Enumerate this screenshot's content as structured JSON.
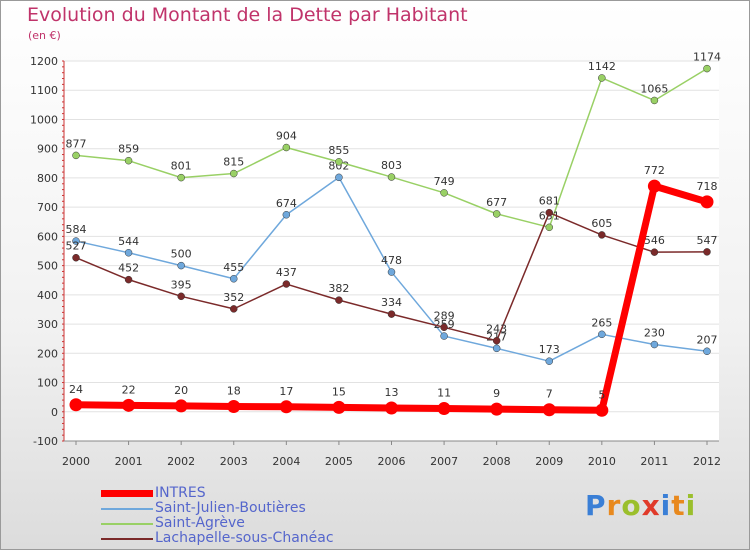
{
  "header": {
    "title": "Evolution du Montant de la Dette par Habitant",
    "subtitle": "(en €)"
  },
  "logo": {
    "text": "Proxiti",
    "letter_colors": [
      "#3a7fd6",
      "#e8891e",
      "#9bbf2c",
      "#e03a2a",
      "#3a7fd6",
      "#e8891e",
      "#9bbf2c"
    ]
  },
  "chart_data": {
    "type": "line",
    "title": "Evolution du Montant de la Dette par Habitant",
    "subtitle": "(en €)",
    "x": [
      "2000",
      "2001",
      "2002",
      "2003",
      "2004",
      "2005",
      "2006",
      "2007",
      "2008",
      "2009",
      "2010",
      "2011",
      "2012"
    ],
    "ylim": [
      -100,
      1200
    ],
    "yticks": [
      -100,
      0,
      100,
      200,
      300,
      400,
      500,
      600,
      700,
      800,
      900,
      1000,
      1100,
      1200
    ],
    "grid": true,
    "legend_position": "bottom-left",
    "series": [
      {
        "name": "INTRES",
        "color": "#ff0000",
        "emphasis": true,
        "values": [
          24,
          22,
          20,
          18,
          17,
          15,
          13,
          11,
          9,
          7,
          5,
          772,
          718
        ]
      },
      {
        "name": "Saint-Julien-Boutières",
        "color": "#6fa8dc",
        "values": [
          584,
          544,
          500,
          455,
          674,
          802,
          478,
          259,
          217,
          173,
          265,
          230,
          207
        ]
      },
      {
        "name": "Saint-Agrève",
        "color": "#99d065",
        "values": [
          877,
          859,
          801,
          815,
          904,
          855,
          803,
          749,
          677,
          631,
          1142,
          1065,
          1174
        ]
      },
      {
        "name": "Lachapelle-sous-Chanéac",
        "color": "#7b2a2a",
        "values": [
          527,
          452,
          395,
          352,
          437,
          382,
          334,
          289,
          243,
          681,
          605,
          546,
          547
        ]
      }
    ]
  }
}
